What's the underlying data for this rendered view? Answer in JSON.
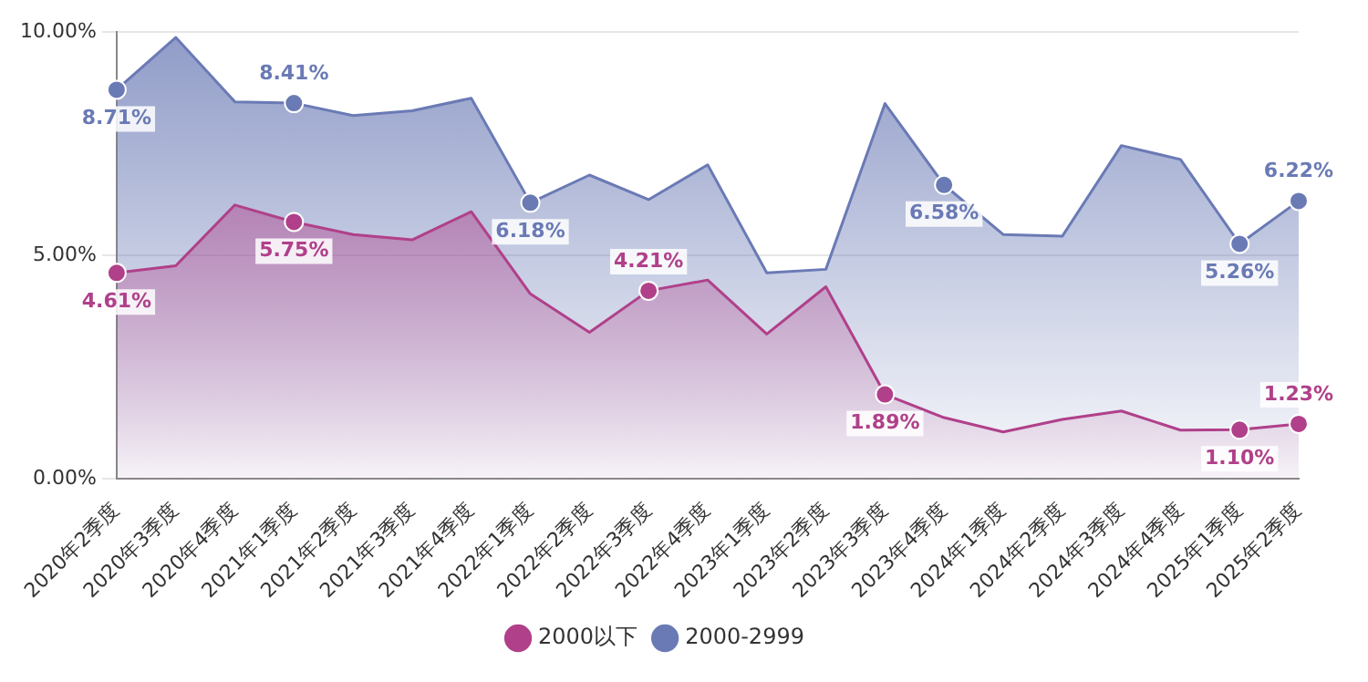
{
  "chart_data": {
    "type": "area",
    "categories": [
      "2020年2季度",
      "2020年3季度",
      "2020年4季度",
      "2021年1季度",
      "2021年2季度",
      "2021年3季度",
      "2021年4季度",
      "2022年1季度",
      "2022年2季度",
      "2022年3季度",
      "2022年4季度",
      "2023年1季度",
      "2023年2季度",
      "2023年3季度",
      "2023年4季度",
      "2024年1季度",
      "2024年2季度",
      "2024年3季度",
      "2024年4季度",
      "2025年1季度",
      "2025年2季度"
    ],
    "series": [
      {
        "name": "2000以下",
        "color": "#b0408a",
        "values": [
          4.61,
          4.77,
          6.13,
          5.75,
          5.47,
          5.35,
          5.98,
          4.14,
          3.28,
          4.21,
          4.45,
          3.24,
          4.3,
          1.89,
          1.37,
          1.05,
          1.33,
          1.52,
          1.09,
          1.1,
          1.23
        ],
        "value_labels": [
          "4.61%",
          null,
          null,
          "5.75%",
          null,
          null,
          null,
          null,
          null,
          "4.21%",
          null,
          null,
          null,
          "1.89%",
          null,
          null,
          null,
          null,
          null,
          "1.10%",
          "1.23%"
        ]
      },
      {
        "name": "2000-2999",
        "color": "#6a7ab5",
        "values": [
          8.71,
          9.88,
          8.44,
          8.41,
          8.13,
          8.24,
          8.52,
          6.18,
          6.8,
          6.25,
          7.03,
          4.61,
          4.69,
          8.4,
          6.58,
          5.47,
          5.43,
          7.46,
          7.15,
          5.26,
          6.22
        ],
        "value_labels": [
          "8.71%",
          null,
          null,
          "8.41%",
          null,
          null,
          null,
          "6.18%",
          null,
          null,
          null,
          null,
          null,
          null,
          "6.58%",
          null,
          null,
          null,
          null,
          "5.26%",
          "6.22%"
        ]
      }
    ],
    "ylim": [
      0,
      10
    ],
    "yticks": [
      {
        "value": 0,
        "label": "0.00%"
      },
      {
        "value": 5,
        "label": "5.00%"
      },
      {
        "value": 10,
        "label": "10.00%"
      }
    ],
    "grid": "y",
    "legend": "bottom"
  }
}
